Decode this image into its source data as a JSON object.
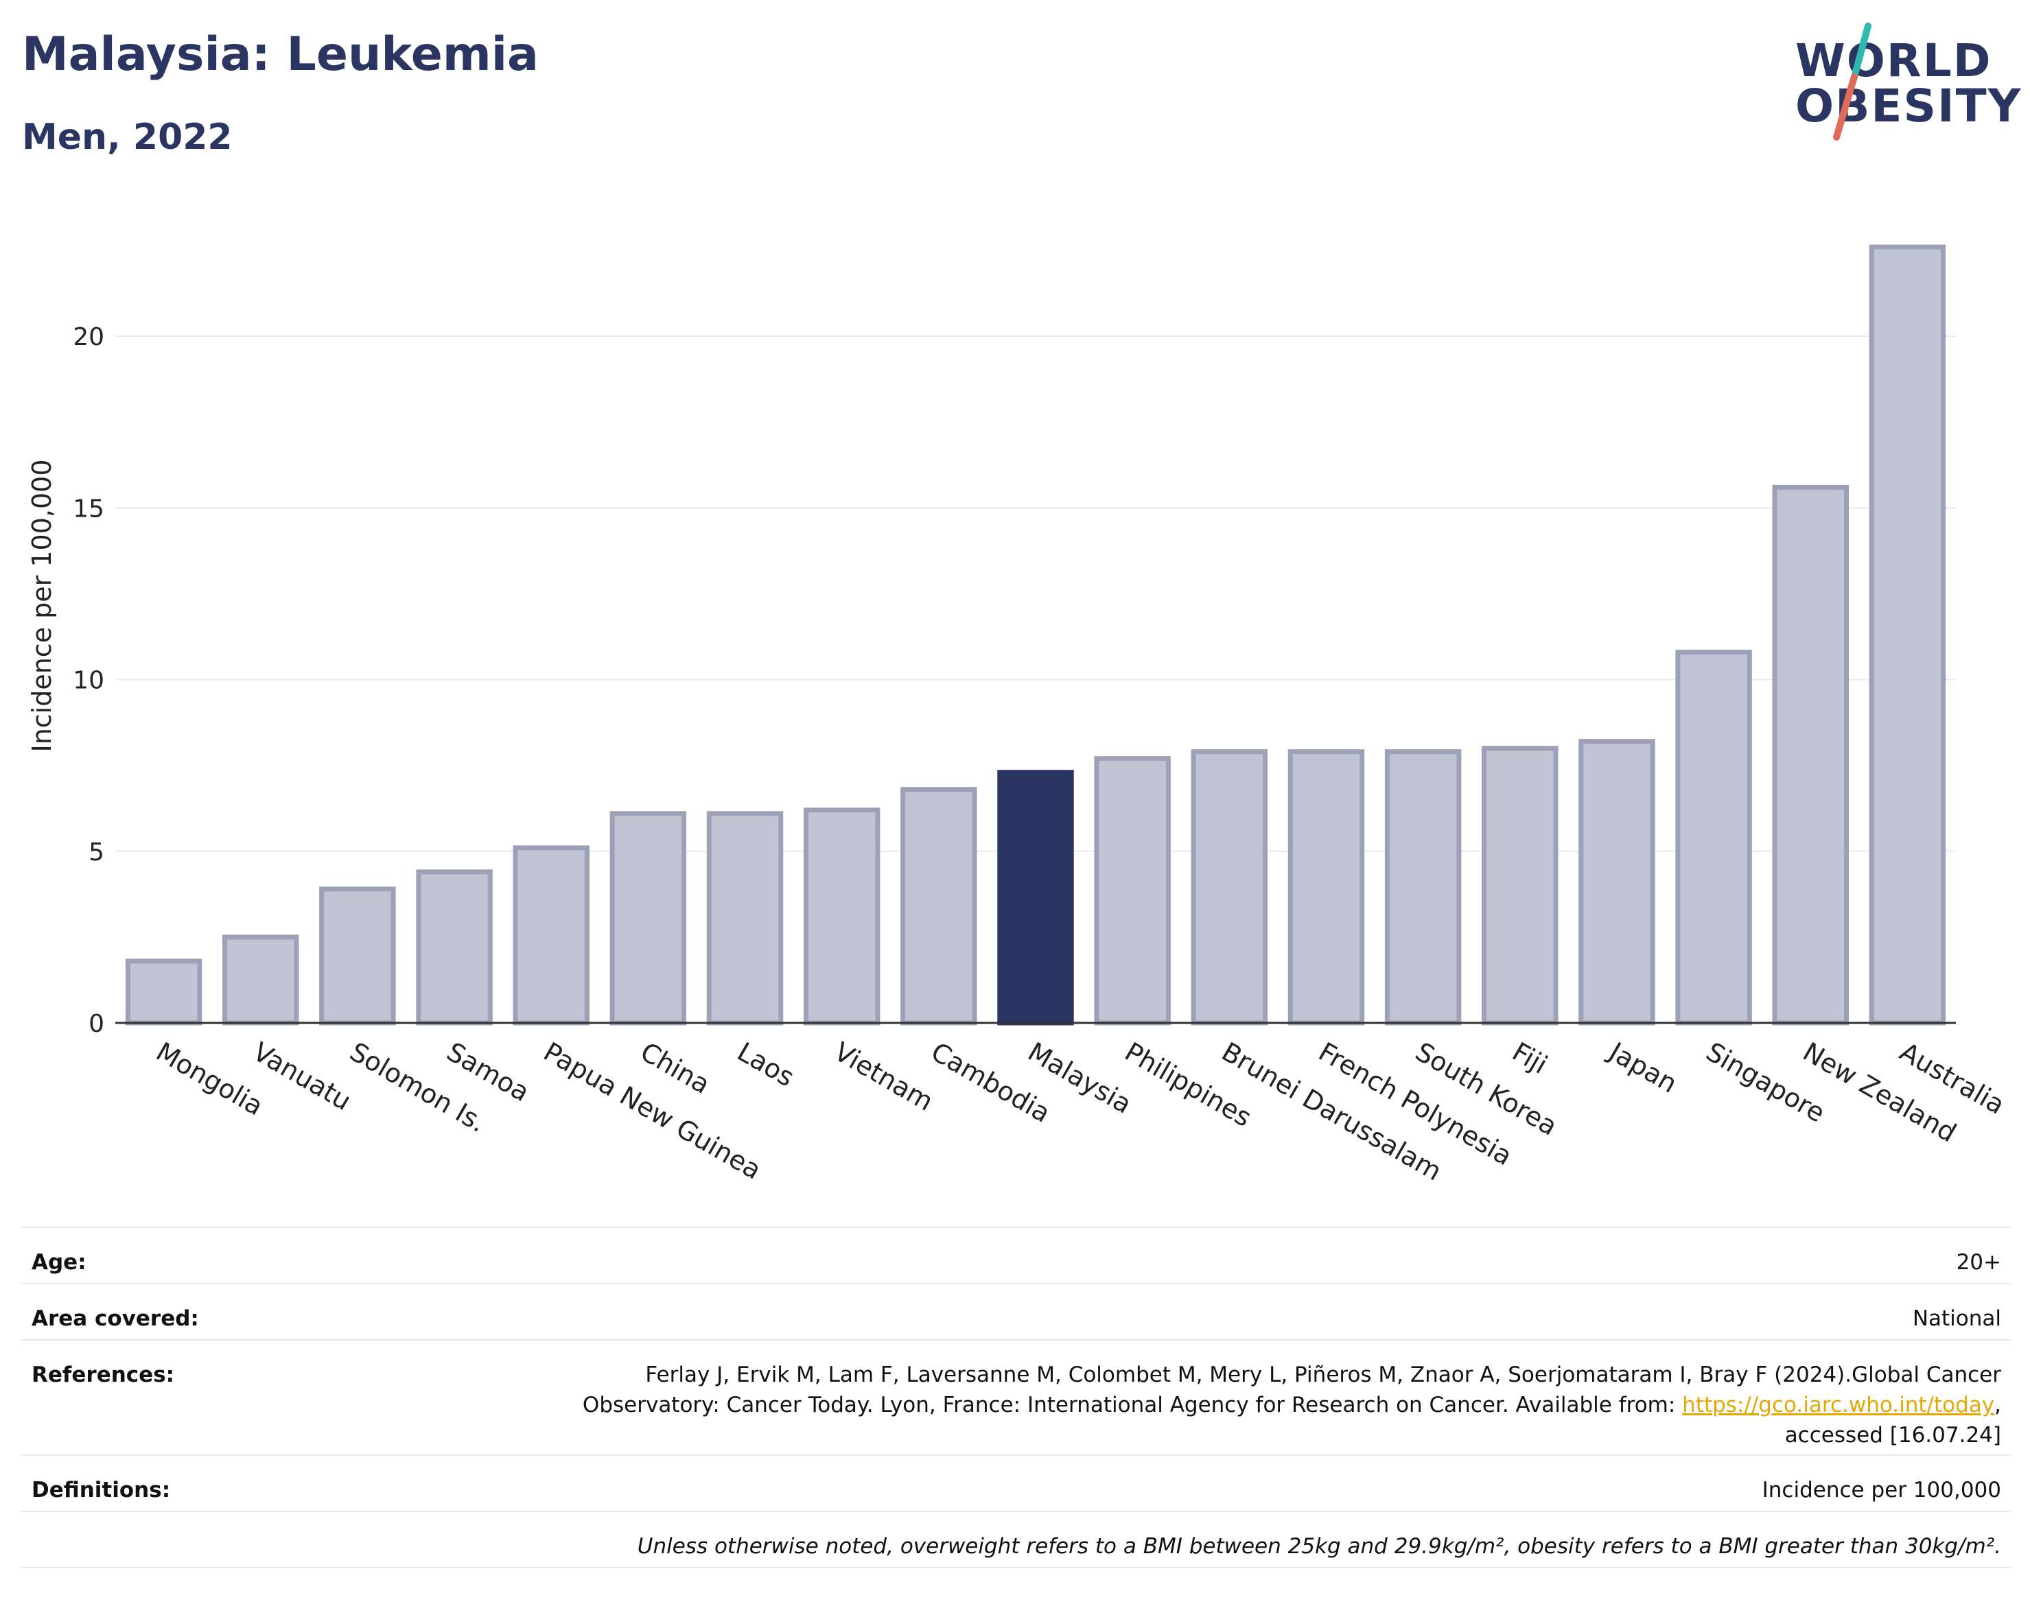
{
  "header": {
    "title": "Malaysia: Leukemia",
    "subtitle": "Men, 2022"
  },
  "logo": {
    "line1": "WORLD",
    "line2": "OBESITY",
    "colors": {
      "text": "#2b3562",
      "slash_top": "#2fb8b0",
      "slash_bottom": "#e06b5a"
    }
  },
  "chart_data": {
    "type": "bar",
    "categories": [
      "Mongolia",
      "Vanuatu",
      "Solomon Is.",
      "Samoa",
      "Papua New Guinea",
      "China",
      "Laos",
      "Vietnam",
      "Cambodia",
      "Malaysia",
      "Philippines",
      "Brunei Darussalam",
      "French Polynesia",
      "South Korea",
      "Fiji",
      "Japan",
      "Singapore",
      "New Zealand",
      "Australia"
    ],
    "values": [
      1.8,
      2.5,
      3.9,
      4.4,
      5.1,
      6.1,
      6.1,
      6.2,
      6.8,
      7.3,
      7.7,
      7.9,
      7.9,
      7.9,
      8.0,
      8.2,
      10.8,
      15.6,
      22.6
    ],
    "highlight": "Malaysia",
    "xlabel": "",
    "ylabel": "Incidence per 100,000",
    "ylim": [
      0,
      24
    ],
    "yticks": [
      0,
      5,
      10,
      15,
      20
    ],
    "grid": true,
    "colors": {
      "bar": "#c1c4d2",
      "bar_border": "#9ca1b8",
      "highlight": "#2b3562",
      "grid": "#e6e8ee",
      "axis": "#333333"
    }
  },
  "info": {
    "age_label": "Age:",
    "age_value": "20+",
    "area_label": "Area covered:",
    "area_value": "National",
    "references_label": "References:",
    "references_line1": "Ferlay J, Ervik M, Lam F, Laversanne M, Colombet M, Mery L, Piñeros M, Znaor A, Soerjomataram I, Bray F (2024).Global Cancer",
    "references_line2": "Observatory: Cancer Today. Lyon, France: International Agency for Research on Cancer. Available from: ",
    "references_link": "https://gco.iarc.who.int/today",
    "references_line3": "accessed [16.07.24]",
    "definitions_label": "Definitions:",
    "definitions_value": "Incidence per 100,000",
    "note": "Unless otherwise noted, overweight refers to a BMI between 25kg and 29.9kg/m², obesity refers to a BMI greater than 30kg/m²."
  }
}
